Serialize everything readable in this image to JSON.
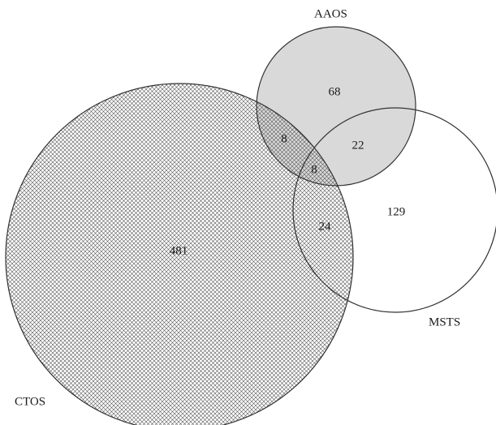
{
  "sets": {
    "ctos": {
      "label": "CTOS"
    },
    "aaos": {
      "label": "AAOS"
    },
    "msts": {
      "label": "MSTS"
    }
  },
  "regions": {
    "ctos_only": "481",
    "aaos_only": "68",
    "msts_only": "129",
    "ctos_aaos": "8",
    "aaos_msts": "22",
    "ctos_msts": "24",
    "all_three": "8"
  },
  "colors": {
    "outline": "#333333",
    "aaos_fill": "#d9d9d9",
    "hatch": "#555555"
  }
}
